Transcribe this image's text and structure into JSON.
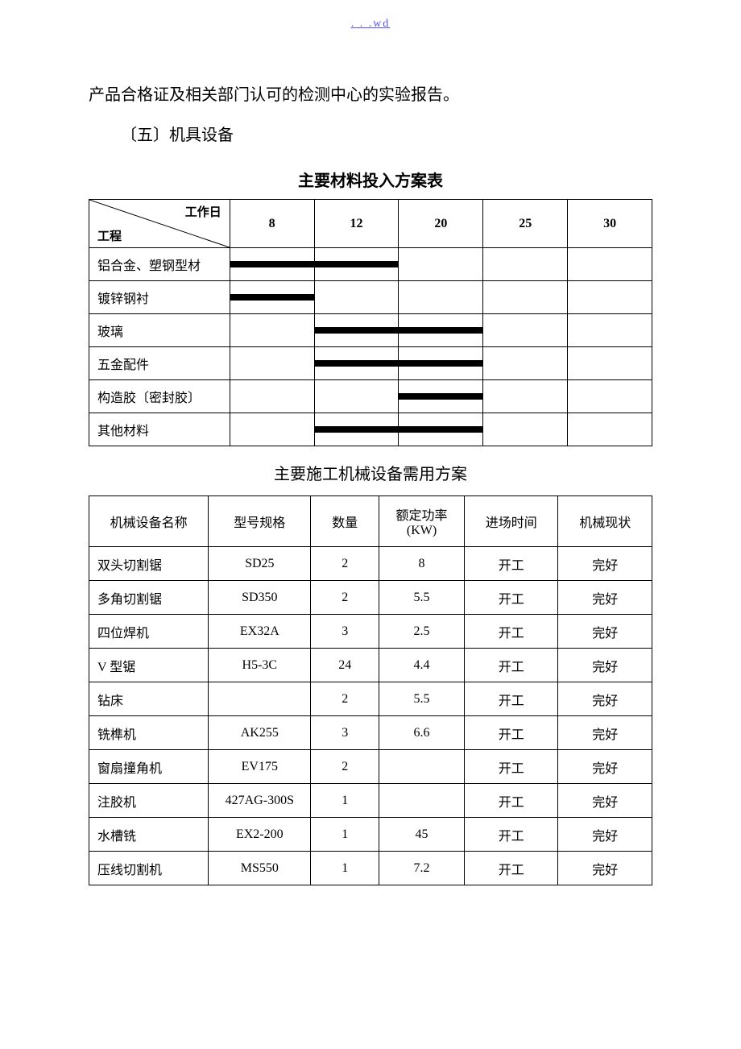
{
  "header": {
    "link_text": ". . .wd"
  },
  "intro": {
    "line1_prefix": "产品合格证及相关部门认可的检测中心的实验报告。",
    "watermark": "",
    "line2": "〔五〕机具设备"
  },
  "gantt": {
    "title": "主要材料投入方案表",
    "diag_top": "工作日",
    "diag_bottom": "工程",
    "days": [
      "8",
      "12",
      "20",
      "25",
      "30"
    ],
    "rows": [
      {
        "label": "铝合金、塑钢型材",
        "bar_start": 0,
        "bar_span": 2
      },
      {
        "label": "镀锌钢衬",
        "bar_start": 0,
        "bar_span": 1
      },
      {
        "label": "玻璃",
        "bar_start": 1,
        "bar_span": 2
      },
      {
        "label": "五金配件",
        "bar_start": 1,
        "bar_span": 2
      },
      {
        "label": "构造胶〔密封胶〕",
        "bar_start": 2,
        "bar_span": 1
      },
      {
        "label": "其他材料",
        "bar_start": 1,
        "bar_span": 2
      }
    ],
    "bar_color": "#000000"
  },
  "equipment": {
    "title": "主要施工机械设备需用方案",
    "columns": [
      "机械设备名称",
      "型号规格",
      "数量",
      "额定功率\n(KW)",
      "进场时间",
      "机械现状"
    ],
    "rows": [
      [
        "双头切割锯",
        "SD25",
        "2",
        "8",
        "开工",
        "完好"
      ],
      [
        "多角切割锯",
        "SD350",
        "2",
        "5.5",
        "开工",
        "完好"
      ],
      [
        "四位焊机",
        "EX32A",
        "3",
        "2.5",
        "开工",
        "完好"
      ],
      [
        "V 型锯",
        "H5-3C",
        "24",
        "4.4",
        "开工",
        "完好"
      ],
      [
        "钻床",
        "",
        "2",
        "5.5",
        "开工",
        "完好"
      ],
      [
        "铣榫机",
        "AK255",
        "3",
        "6.6",
        "开工",
        "完好"
      ],
      [
        "窗扇撞角机",
        "EV175",
        "2",
        "",
        "开工",
        "完好"
      ],
      [
        "注胶机",
        "427AG-300S",
        "1",
        "",
        "开工",
        "完好"
      ],
      [
        "水槽铣",
        "EX2-200",
        "1",
        "45",
        "开工",
        "完好"
      ],
      [
        "压线切割机",
        "MS550",
        "1",
        "7.2",
        "开工",
        "完好"
      ]
    ]
  }
}
